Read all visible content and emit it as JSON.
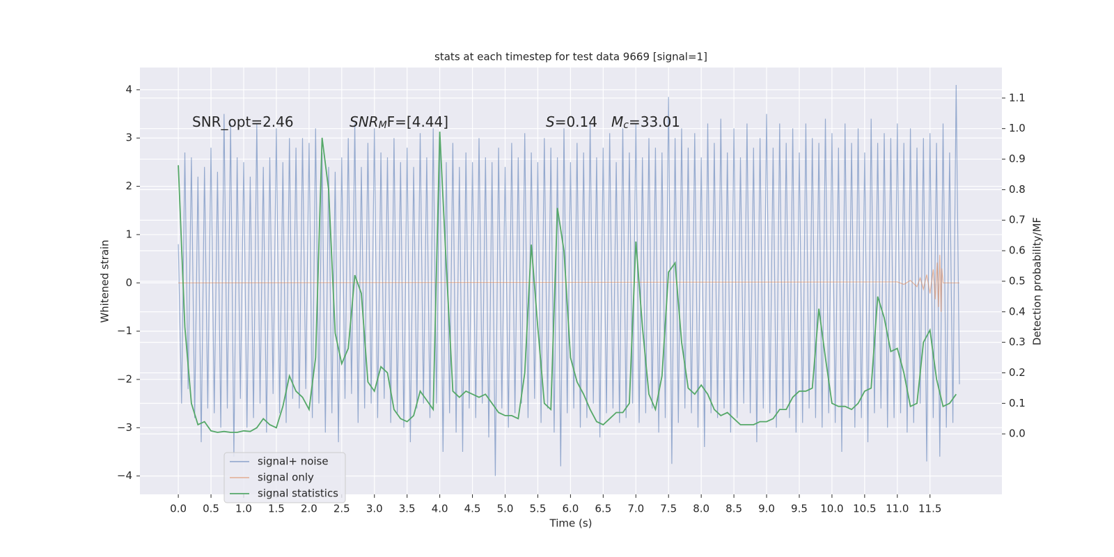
{
  "chart_data": {
    "type": "line",
    "title": "stats at each timestep for test data 9669 [signal=1]",
    "xlabel": "Time (s)",
    "ylabel": "Whitened strain",
    "y2label": "Detection probability/MF",
    "xlim": [
      -0.587,
      12.6
    ],
    "ylim": [
      -4.38,
      4.46
    ],
    "y2lim": [
      -0.198,
      1.2
    ],
    "xticks": [
      {
        "value": 0,
        "label": "0.0"
      },
      0.5,
      {
        "value": 1,
        "label": "1.0"
      },
      1.5,
      {
        "value": 2,
        "label": "2.0"
      },
      2.5,
      {
        "value": 3,
        "label": "3.0"
      },
      3.5,
      {
        "value": 4,
        "label": "4.0"
      },
      4.5,
      {
        "value": 5,
        "label": "5.0"
      },
      5.5,
      {
        "value": 6,
        "label": "6.0"
      },
      6.5,
      {
        "value": 7,
        "label": "7.0"
      },
      7.5,
      {
        "value": 8,
        "label": "8.0"
      },
      8.5,
      {
        "value": 9,
        "label": "9.0"
      },
      9.5,
      {
        "value": 10,
        "label": "10.0"
      },
      10.5,
      {
        "value": 11,
        "label": "11.0"
      },
      11.5
    ],
    "yticks": [
      {
        "value": -4,
        "label": "−4"
      },
      {
        "value": -3,
        "label": "−3"
      },
      {
        "value": -2,
        "label": "−2"
      },
      {
        "value": -1,
        "label": "−1"
      },
      0,
      1,
      2,
      3,
      4
    ],
    "y2ticks": [
      {
        "value": 0,
        "label": "0.0"
      },
      0.1,
      0.2,
      0.3,
      0.4,
      0.5,
      0.6,
      0.7,
      0.8,
      0.9,
      {
        "value": 1,
        "label": "1.0"
      },
      1.1
    ],
    "grid": true,
    "legend": "lower left",
    "annotations": [
      {
        "parts": [
          {
            "t": "SNR_opt=2.46"
          }
        ]
      },
      {
        "parts": [
          {
            "t": "SNR",
            "style": "italic"
          },
          {
            "t": "M",
            "style": "sub"
          },
          {
            "t": "F=[4.44]"
          }
        ]
      },
      {
        "parts": [
          {
            "t": "S",
            "style": "italic"
          },
          {
            "t": "=0.14"
          }
        ]
      },
      {
        "parts": [
          {
            "t": "M",
            "style": "italic"
          },
          {
            "t": "c",
            "style": "sub"
          },
          {
            "t": "=33.01"
          }
        ]
      }
    ],
    "series": [
      {
        "name": "signal+ noise",
        "color": "#4c72b0",
        "x": [
          0,
          0.05,
          0.1,
          0.15,
          0.2,
          0.25,
          0.3,
          0.35,
          0.4,
          0.45,
          0.5,
          0.55,
          0.6,
          0.65,
          0.7,
          0.75,
          0.8,
          0.85,
          0.9,
          0.95,
          1,
          1.05,
          1.1,
          1.15,
          1.2,
          1.25,
          1.3,
          1.35,
          1.4,
          1.45,
          1.5,
          1.55,
          1.6,
          1.65,
          1.7,
          1.75,
          1.8,
          1.85,
          1.9,
          1.95,
          2,
          2.05,
          2.1,
          2.15,
          2.2,
          2.25,
          2.3,
          2.35,
          2.4,
          2.45,
          2.5,
          2.55,
          2.6,
          2.65,
          2.7,
          2.75,
          2.8,
          2.85,
          2.9,
          2.95,
          3,
          3.05,
          3.1,
          3.15,
          3.2,
          3.25,
          3.3,
          3.35,
          3.4,
          3.45,
          3.5,
          3.55,
          3.6,
          3.65,
          3.7,
          3.75,
          3.8,
          3.85,
          3.9,
          3.95,
          4,
          4.05,
          4.1,
          4.15,
          4.2,
          4.25,
          4.3,
          4.35,
          4.4,
          4.45,
          4.5,
          4.55,
          4.6,
          4.65,
          4.7,
          4.75,
          4.8,
          4.85,
          4.9,
          4.95,
          5,
          5.05,
          5.1,
          5.15,
          5.2,
          5.25,
          5.3,
          5.35,
          5.4,
          5.45,
          5.5,
          5.55,
          5.6,
          5.65,
          5.7,
          5.75,
          5.8,
          5.85,
          5.9,
          5.95,
          6,
          6.05,
          6.1,
          6.15,
          6.2,
          6.25,
          6.3,
          6.35,
          6.4,
          6.45,
          6.5,
          6.55,
          6.6,
          6.65,
          6.7,
          6.75,
          6.8,
          6.85,
          6.9,
          6.95,
          7,
          7.05,
          7.1,
          7.15,
          7.2,
          7.25,
          7.3,
          7.35,
          7.4,
          7.45,
          7.5,
          7.55,
          7.6,
          7.65,
          7.7,
          7.75,
          7.8,
          7.85,
          7.9,
          7.95,
          8,
          8.05,
          8.1,
          8.15,
          8.2,
          8.25,
          8.3,
          8.35,
          8.4,
          8.45,
          8.5,
          8.55,
          8.6,
          8.65,
          8.7,
          8.75,
          8.8,
          8.85,
          8.9,
          8.95,
          9,
          9.05,
          9.1,
          9.15,
          9.2,
          9.25,
          9.3,
          9.35,
          9.4,
          9.45,
          9.5,
          9.55,
          9.6,
          9.65,
          9.7,
          9.75,
          9.8,
          9.85,
          9.9,
          9.95,
          10,
          10.05,
          10.1,
          10.15,
          10.2,
          10.25,
          10.3,
          10.35,
          10.4,
          10.45,
          10.5,
          10.55,
          10.6,
          10.65,
          10.7,
          10.75,
          10.8,
          10.85,
          10.9,
          10.95,
          11,
          11.05,
          11.1,
          11.15,
          11.2,
          11.25,
          11.3,
          11.35,
          11.4,
          11.45,
          11.5,
          11.55,
          11.6,
          11.65,
          11.7,
          11.75,
          11.8,
          11.85,
          11.9,
          11.95
        ],
        "values": [
          0.8,
          -2.5,
          2.7,
          -2.2,
          2.6,
          -2.8,
          2.2,
          -3.3,
          2.4,
          -2.6,
          2.8,
          -2.7,
          2.3,
          -3.0,
          3.5,
          -2.6,
          3.3,
          -3.6,
          2.6,
          -2.4,
          2.5,
          -3.0,
          2.2,
          -2.8,
          3.3,
          -2.5,
          2.4,
          -3.1,
          2.6,
          -2.3,
          3.2,
          -2.7,
          2.5,
          -2.9,
          3.0,
          -2.4,
          2.8,
          -2.6,
          3.0,
          -2.2,
          2.9,
          -2.8,
          3.2,
          -2.5,
          2.7,
          -3.1,
          2.4,
          -2.7,
          2.3,
          -3.3,
          2.6,
          -2.4,
          3.0,
          -2.3,
          3.3,
          -2.9,
          2.4,
          -2.6,
          2.9,
          -2.5,
          3.2,
          -2.8,
          2.7,
          -2.4,
          2.6,
          -2.9,
          3.0,
          -2.7,
          2.5,
          -3.0,
          2.8,
          -3.3,
          2.4,
          -2.6,
          3.1,
          -2.5,
          2.6,
          -2.8,
          3.2,
          -2.5,
          2.8,
          -3.5,
          2.5,
          -2.7,
          2.9,
          -3.1,
          2.4,
          -3.5,
          2.7,
          -2.6,
          2.5,
          -2.8,
          3.0,
          -2.5,
          2.6,
          -3.2,
          2.5,
          -4.0,
          2.8,
          -2.6,
          2.4,
          -3.0,
          2.9,
          -2.7,
          2.6,
          -2.5,
          3.1,
          -2.8,
          2.7,
          -2.4,
          2.5,
          -2.9,
          3.0,
          -2.6,
          2.8,
          -3.1,
          2.6,
          -3.8,
          3.2,
          -2.7,
          2.5,
          -2.6,
          2.9,
          -3.0,
          2.7,
          -2.8,
          3.3,
          -2.5,
          2.6,
          -3.2,
          2.8,
          -2.7,
          3.1,
          -2.6,
          2.5,
          -2.9,
          3.2,
          -2.8,
          2.7,
          -2.5,
          3.3,
          -2.9,
          2.6,
          -2.7,
          3.0,
          -2.6,
          2.8,
          -3.1,
          2.7,
          -2.8,
          3.85,
          -3.75,
          3.0,
          -2.9,
          3.2,
          -2.6,
          2.8,
          -2.7,
          3.1,
          -3.0,
          2.6,
          -3.4,
          3.3,
          -2.7,
          2.9,
          -2.8,
          3.4,
          -2.6,
          2.7,
          -3.1,
          3.2,
          -2.8,
          2.6,
          -2.5,
          3.3,
          -2.7,
          2.8,
          -3.3,
          3.0,
          -2.6,
          3.5,
          -2.7,
          2.8,
          -3.0,
          3.3,
          -2.6,
          2.9,
          -2.8,
          3.2,
          -3.1,
          2.7,
          -2.9,
          3.3,
          -2.6,
          3.0,
          -2.8,
          2.9,
          -3.0,
          3.4,
          -2.7,
          3.1,
          -2.9,
          2.8,
          -3.5,
          3.3,
          -2.6,
          2.9,
          -3.0,
          3.2,
          -2.8,
          2.7,
          -3.3,
          3.4,
          -2.7,
          2.9,
          -2.6,
          3.1,
          -3.0,
          3.0,
          -2.8,
          3.3,
          -2.7,
          2.9,
          -3.1,
          3.2,
          -2.9,
          2.8,
          -2.5,
          3.0,
          -3.7,
          3.1,
          -2.8,
          2.9,
          -3.6,
          3.3,
          -3.0,
          2.7,
          -2.9,
          4.1,
          -2.1
        ]
      },
      {
        "name": "signal only",
        "color": "#dd8452",
        "x": [
          0,
          11,
          11.1,
          11.2,
          11.3,
          11.35,
          11.4,
          11.45,
          11.5,
          11.55,
          11.58,
          11.61,
          11.63,
          11.65,
          11.67,
          11.68,
          11.7,
          11.95
        ],
        "values": [
          0,
          0.02,
          -0.03,
          0.05,
          -0.08,
          0.1,
          -0.13,
          0.17,
          -0.22,
          0.28,
          -0.34,
          0.42,
          -0.5,
          0.58,
          -0.6,
          0.3,
          0,
          0
        ]
      },
      {
        "name": "signal statistics",
        "color": "#55a868",
        "axis": "y2",
        "x": [
          0,
          0.1,
          0.2,
          0.3,
          0.4,
          0.5,
          0.6,
          0.7,
          0.8,
          0.9,
          1,
          1.1,
          1.2,
          1.3,
          1.4,
          1.5,
          1.6,
          1.7,
          1.8,
          1.9,
          2,
          2.1,
          2.2,
          2.3,
          2.4,
          2.5,
          2.6,
          2.7,
          2.8,
          2.9,
          3,
          3.1,
          3.2,
          3.3,
          3.4,
          3.5,
          3.6,
          3.7,
          3.8,
          3.9,
          4,
          4.1,
          4.2,
          4.3,
          4.4,
          4.5,
          4.6,
          4.7,
          4.8,
          4.9,
          5,
          5.1,
          5.2,
          5.3,
          5.4,
          5.5,
          5.6,
          5.7,
          5.8,
          5.9,
          6,
          6.1,
          6.2,
          6.3,
          6.4,
          6.5,
          6.6,
          6.7,
          6.8,
          6.9,
          7,
          7.1,
          7.2,
          7.3,
          7.4,
          7.5,
          7.6,
          7.7,
          7.8,
          7.9,
          8,
          8.1,
          8.2,
          8.3,
          8.4,
          8.5,
          8.6,
          8.7,
          8.8,
          8.9,
          9,
          9.1,
          9.2,
          9.3,
          9.4,
          9.5,
          9.6,
          9.7,
          9.8,
          9.9,
          10,
          10.1,
          10.2,
          10.3,
          10.4,
          10.5,
          10.6,
          10.7,
          10.8,
          10.9,
          11,
          11.1,
          11.2,
          11.3,
          11.4,
          11.5,
          11.6,
          11.7,
          11.8,
          11.9
        ],
        "values": [
          0.88,
          0.35,
          0.1,
          0.03,
          0.04,
          0.01,
          0.005,
          0.008,
          0.005,
          0.005,
          0.01,
          0.008,
          0.02,
          0.05,
          0.03,
          0.02,
          0.09,
          0.19,
          0.14,
          0.12,
          0.08,
          0.25,
          0.97,
          0.8,
          0.33,
          0.23,
          0.28,
          0.52,
          0.46,
          0.17,
          0.14,
          0.22,
          0.2,
          0.08,
          0.05,
          0.04,
          0.06,
          0.14,
          0.11,
          0.08,
          0.99,
          0.55,
          0.14,
          0.12,
          0.14,
          0.13,
          0.12,
          0.13,
          0.1,
          0.07,
          0.06,
          0.06,
          0.05,
          0.2,
          0.62,
          0.35,
          0.1,
          0.08,
          0.74,
          0.6,
          0.25,
          0.17,
          0.13,
          0.08,
          0.04,
          0.03,
          0.05,
          0.07,
          0.07,
          0.1,
          0.63,
          0.35,
          0.13,
          0.08,
          0.19,
          0.53,
          0.56,
          0.3,
          0.15,
          0.13,
          0.16,
          0.13,
          0.08,
          0.06,
          0.07,
          0.05,
          0.03,
          0.03,
          0.03,
          0.04,
          0.04,
          0.05,
          0.08,
          0.08,
          0.12,
          0.14,
          0.14,
          0.15,
          0.41,
          0.25,
          0.1,
          0.09,
          0.09,
          0.08,
          0.1,
          0.14,
          0.15,
          0.45,
          0.38,
          0.27,
          0.28,
          0.2,
          0.09,
          0.1,
          0.3,
          0.34,
          0.18,
          0.09,
          0.1,
          0.13
        ]
      }
    ]
  }
}
